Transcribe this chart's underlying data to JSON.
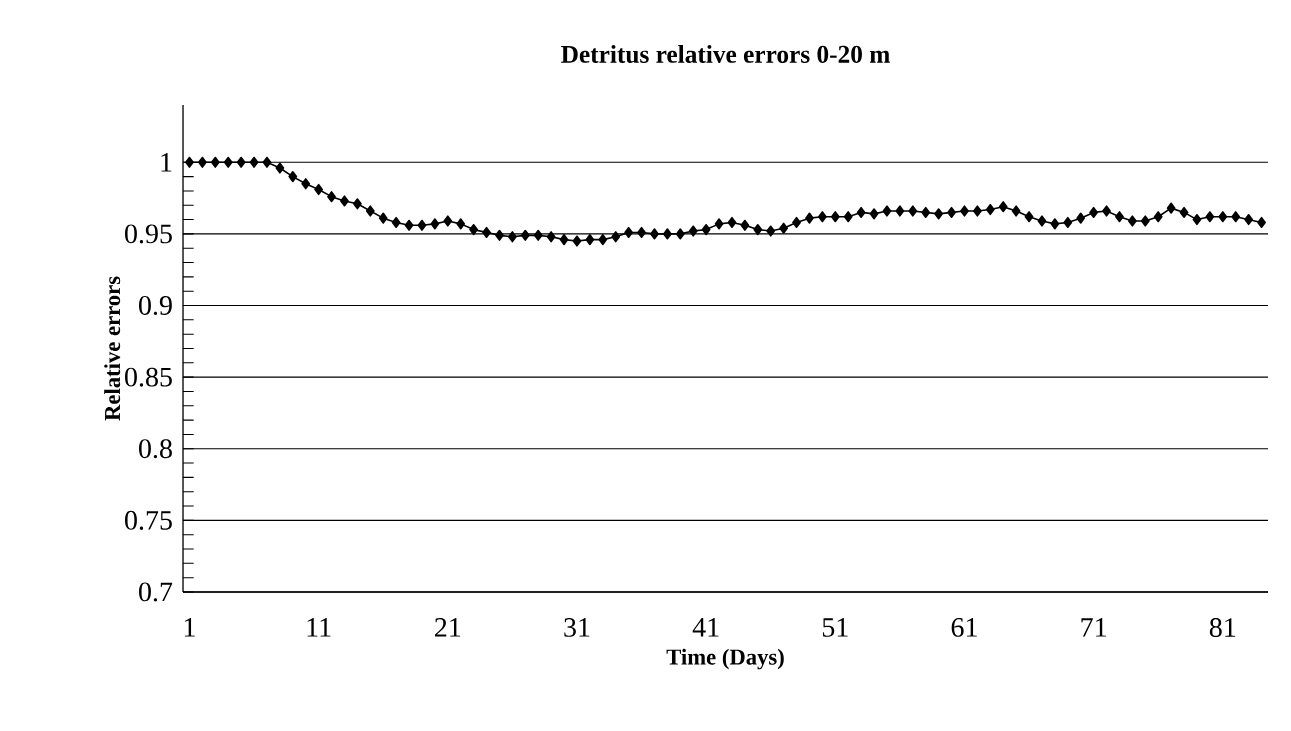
{
  "chart_data": {
    "type": "line",
    "title": "Detritus relative errors 0-20 m",
    "xlabel": "Time (Days)",
    "ylabel": "Relative errors",
    "categories": [
      "1",
      null,
      null,
      null,
      null,
      null,
      null,
      null,
      null,
      null,
      "11",
      null,
      null,
      null,
      null,
      null,
      null,
      null,
      null,
      null,
      "21",
      null,
      null,
      null,
      null,
      null,
      null,
      null,
      null,
      null,
      "31",
      null,
      null,
      null,
      null,
      null,
      null,
      null,
      null,
      null,
      "41",
      null,
      null,
      null,
      null,
      null,
      null,
      null,
      null,
      null,
      "51",
      null,
      null,
      null,
      null,
      null,
      null,
      null,
      null,
      null,
      "61",
      null,
      null,
      null,
      null,
      null,
      null,
      null,
      null,
      null,
      "71",
      null,
      null,
      null,
      null,
      null,
      null,
      null,
      null,
      null,
      "81",
      null,
      null,
      null
    ],
    "series": [
      {
        "color": "#000000",
        "values": [
          1.0,
          1.0,
          1.0,
          1.0,
          1.0,
          1.0,
          1.0,
          0.996,
          0.99,
          0.985,
          0.981,
          0.976,
          0.973,
          0.971,
          0.966,
          0.961,
          0.958,
          0.956,
          0.956,
          0.957,
          0.959,
          0.957,
          0.953,
          0.951,
          0.949,
          0.948,
          0.949,
          0.949,
          0.948,
          0.946,
          0.945,
          0.946,
          0.946,
          0.948,
          0.951,
          0.951,
          0.95,
          0.95,
          0.95,
          0.952,
          0.953,
          0.957,
          0.958,
          0.956,
          0.953,
          0.952,
          0.954,
          0.958,
          0.961,
          0.962,
          0.962,
          0.962,
          0.965,
          0.964,
          0.966,
          0.966,
          0.966,
          0.965,
          0.964,
          0.965,
          0.966,
          0.966,
          0.967,
          0.969,
          0.966,
          0.962,
          0.959,
          0.957,
          0.958,
          0.961,
          0.965,
          0.966,
          0.962,
          0.959,
          0.959,
          0.962,
          0.968,
          0.965,
          0.96,
          0.962,
          0.962,
          0.962,
          0.96,
          0.958
        ]
      }
    ],
    "ylim": [
      0.7,
      1.04
    ],
    "yticks": [
      0.7,
      0.75,
      0.8,
      0.85,
      0.9,
      0.95,
      1
    ],
    "grid": "y",
    "marker": "diamond",
    "line_style": "solid"
  }
}
